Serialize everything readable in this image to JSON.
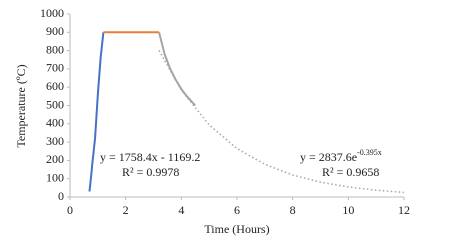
{
  "chart_data": {
    "type": "line",
    "xlabel": "Time (Hours)",
    "ylabel": "Temperature (ºC)",
    "xlim": [
      0,
      12
    ],
    "xticks": [
      0,
      2,
      4,
      6,
      8,
      10,
      12
    ],
    "ylim": [
      0,
      1000
    ],
    "yticks": [
      0,
      100,
      200,
      300,
      400,
      500,
      600,
      700,
      800,
      900,
      1000
    ],
    "series": [
      {
        "color": "#4472c4",
        "style": "solid",
        "x": [
          0.7,
          0.75,
          0.8,
          0.9,
          1.0,
          1.1,
          1.2
        ],
        "values": [
          30,
          100,
          180,
          320,
          560,
          760,
          900
        ]
      },
      {
        "color": "#ed7d31",
        "style": "solid",
        "x": [
          1.2,
          3.2
        ],
        "values": [
          900,
          900
        ]
      },
      {
        "color": "#a5a5a5",
        "style": "solid",
        "x": [
          3.2,
          3.4,
          3.6,
          3.8,
          4.0,
          4.2,
          4.5
        ],
        "values": [
          900,
          780,
          700,
          640,
          590,
          550,
          500
        ]
      },
      {
        "color": "#a5a5a5",
        "style": "dotted",
        "x": [
          3.2,
          4,
          5,
          6,
          7,
          8,
          9,
          10,
          11,
          12
        ],
        "values": [
          801,
          584,
          394,
          265,
          179,
          120,
          81,
          55,
          37,
          25
        ]
      }
    ],
    "annotations": [
      {
        "text": "y = 1758.4x - 1169.2",
        "r2": "R² = 0.9978"
      },
      {
        "text": "y = 2837.6e",
        "sup": "-0.395x",
        "r2": "R² = 0.9658"
      }
    ]
  }
}
